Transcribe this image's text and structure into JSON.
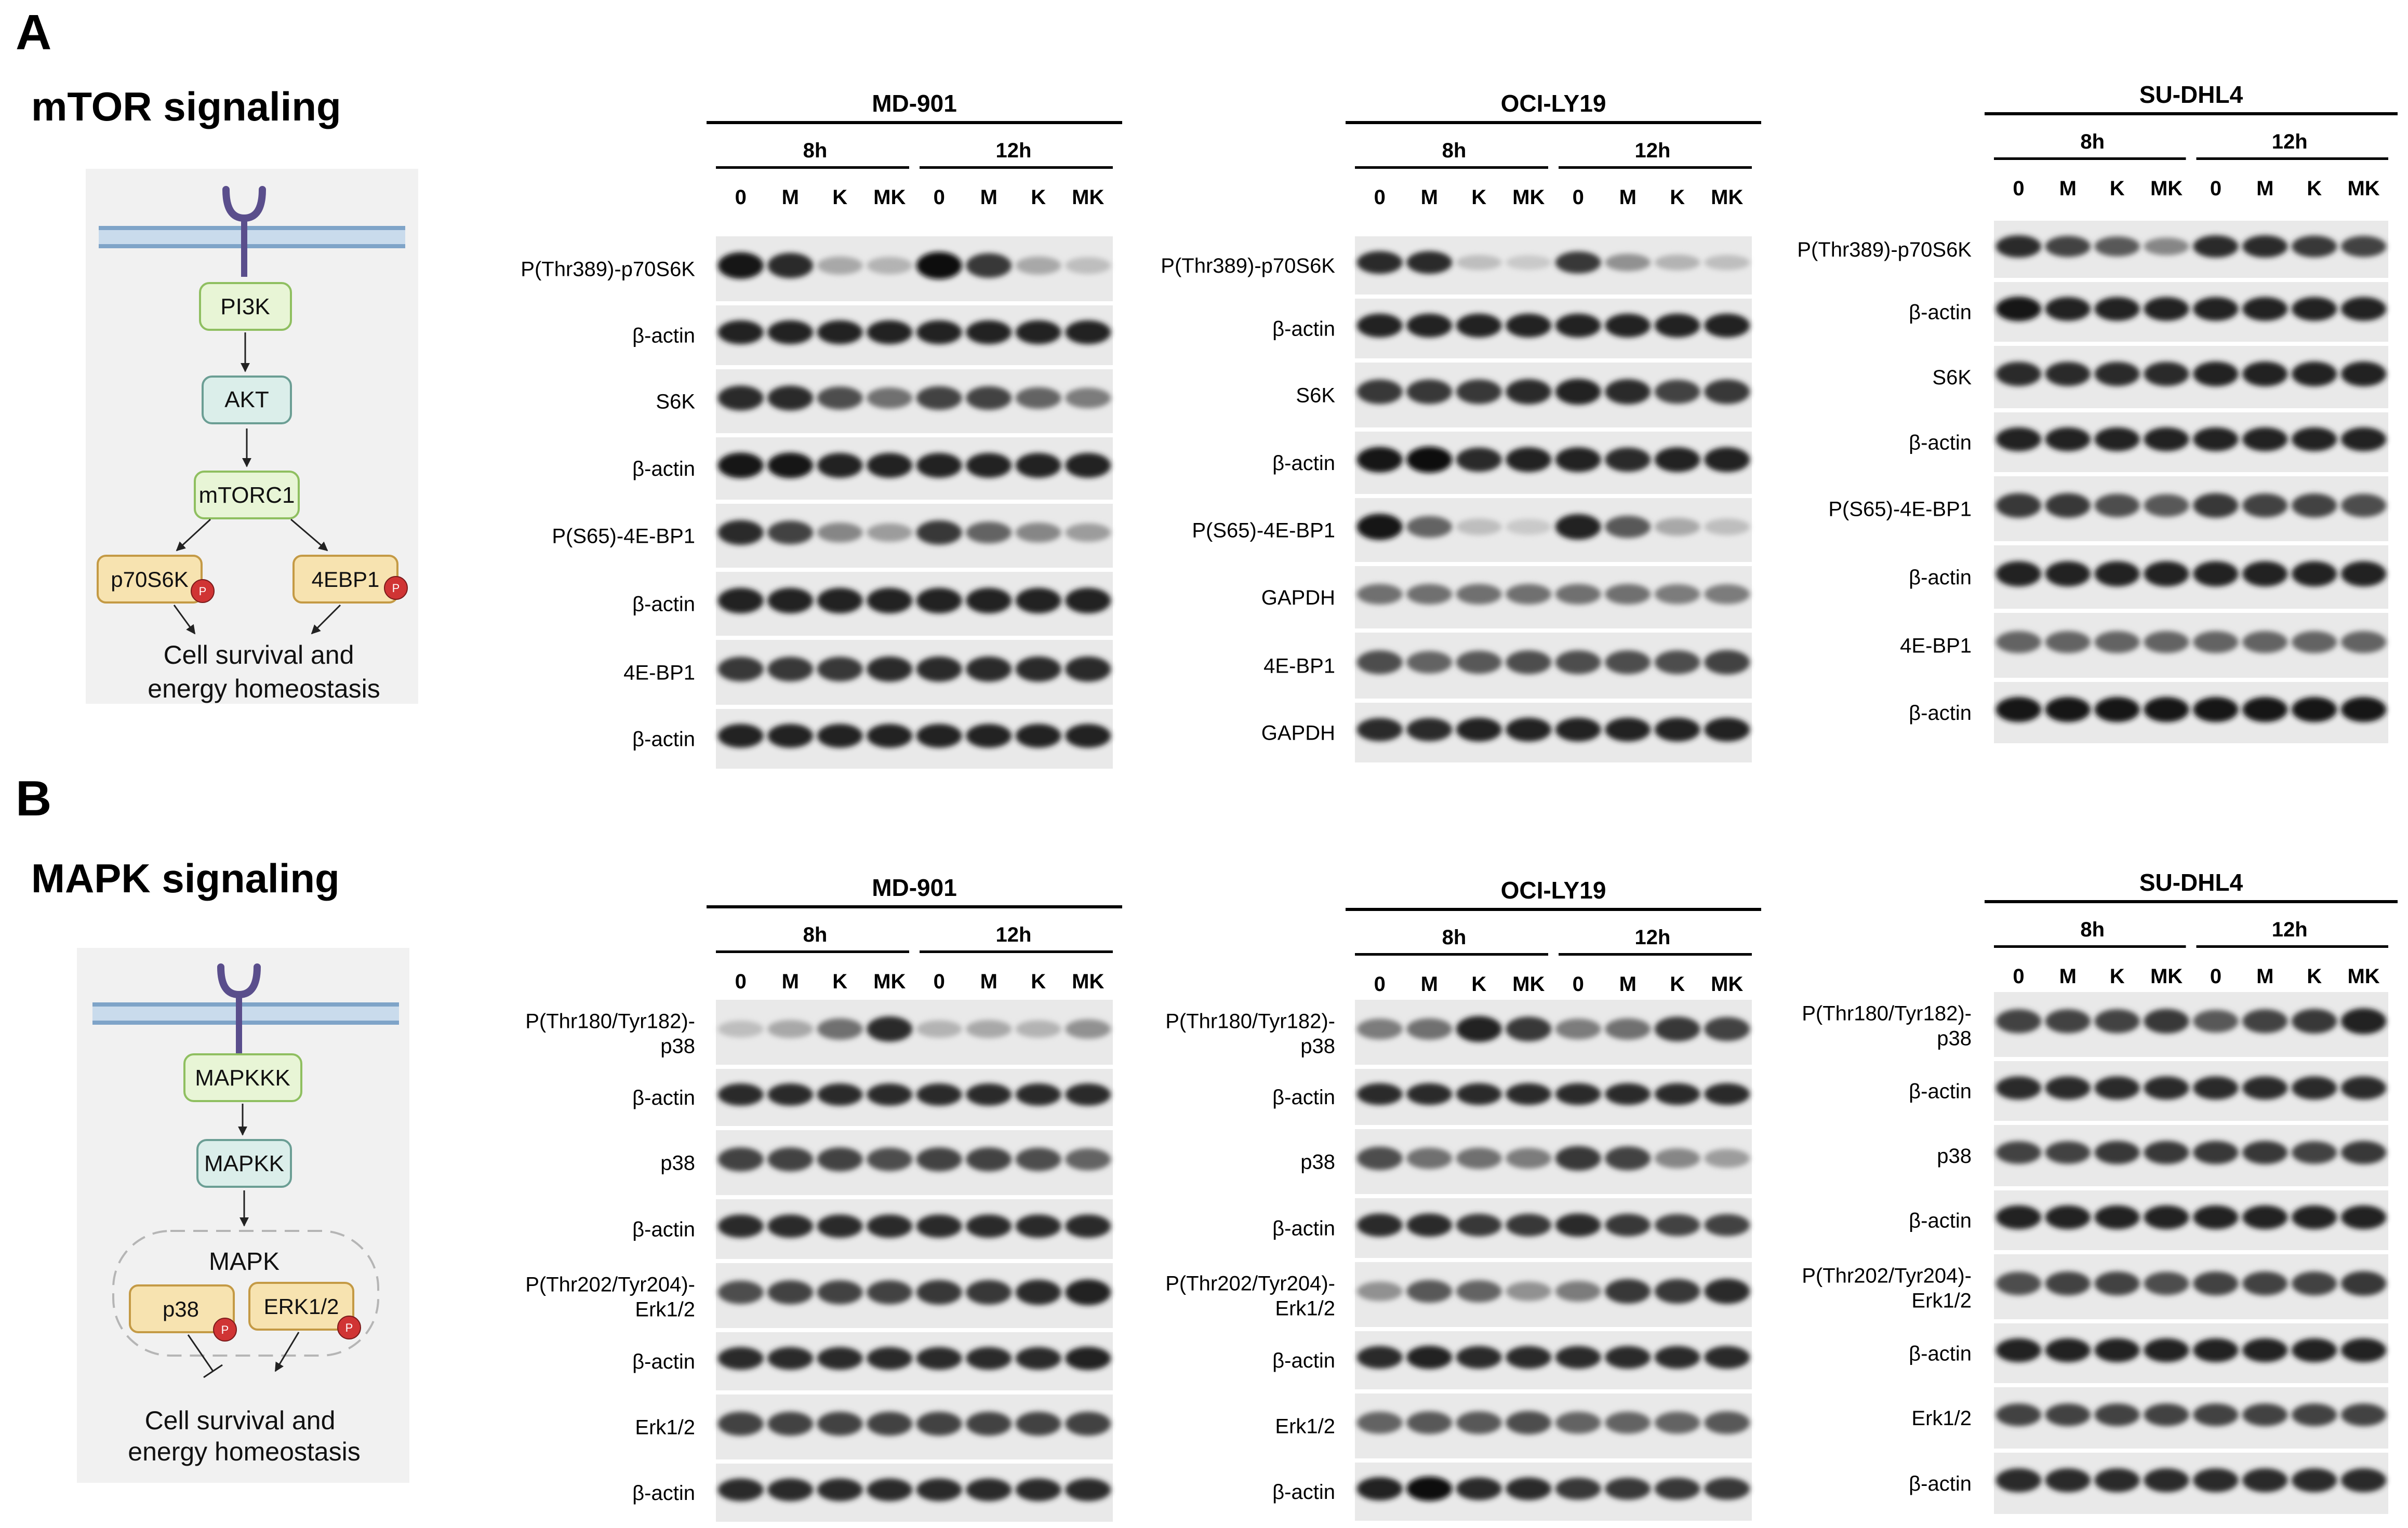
{
  "panel_a": {
    "letter": "A",
    "title": "mTOR signaling",
    "pathway": {
      "node1": "PI3K",
      "node2": "AKT",
      "node3": "mTORC1",
      "target1": "p70S6K",
      "target2": "4EBP1",
      "phospho": "P",
      "outcome_line1": "Cell survival and",
      "outcome_line2": "energy homeostasis"
    },
    "blots": [
      {
        "cell_line": "MD-901",
        "times": [
          "8h",
          "12h"
        ],
        "lanes": [
          "0",
          "M",
          "K",
          "MK",
          "0",
          "M",
          "K",
          "MK"
        ],
        "rows": [
          "P(Thr389)-p70S6K",
          "β-actin",
          "S6K",
          "β-actin",
          "P(S65)-4E-BP1",
          "β-actin",
          "4E-BP1",
          "β-actin"
        ],
        "band_intensity": [
          [
            0.95,
            0.85,
            0.3,
            0.25,
            1.0,
            0.8,
            0.3,
            0.2
          ],
          [
            0.9,
            0.9,
            0.9,
            0.9,
            0.9,
            0.9,
            0.9,
            0.9
          ],
          [
            0.85,
            0.85,
            0.7,
            0.55,
            0.75,
            0.75,
            0.6,
            0.5
          ],
          [
            0.95,
            0.95,
            0.9,
            0.9,
            0.9,
            0.9,
            0.9,
            0.9
          ],
          [
            0.85,
            0.75,
            0.45,
            0.35,
            0.8,
            0.6,
            0.45,
            0.35
          ],
          [
            0.9,
            0.9,
            0.9,
            0.9,
            0.9,
            0.9,
            0.9,
            0.9
          ],
          [
            0.8,
            0.8,
            0.8,
            0.85,
            0.85,
            0.85,
            0.85,
            0.85
          ],
          [
            0.9,
            0.9,
            0.9,
            0.9,
            0.9,
            0.9,
            0.9,
            0.9
          ]
        ]
      },
      {
        "cell_line": "OCI-LY19",
        "times": [
          "8h",
          "12h"
        ],
        "lanes": [
          "0",
          "M",
          "K",
          "MK",
          "0",
          "M",
          "K",
          "MK"
        ],
        "rows": [
          "P(Thr389)-p70S6K",
          "β-actin",
          "S6K",
          "β-actin",
          "P(S65)-4E-BP1",
          "GAPDH",
          "4E-BP1",
          "GAPDH"
        ],
        "band_intensity": [
          [
            0.85,
            0.85,
            0.2,
            0.15,
            0.8,
            0.4,
            0.25,
            0.2
          ],
          [
            0.9,
            0.9,
            0.9,
            0.9,
            0.9,
            0.9,
            0.9,
            0.9
          ],
          [
            0.8,
            0.8,
            0.8,
            0.85,
            0.9,
            0.85,
            0.75,
            0.8
          ],
          [
            0.95,
            1.0,
            0.85,
            0.9,
            0.9,
            0.85,
            0.9,
            0.9
          ],
          [
            0.95,
            0.6,
            0.2,
            0.15,
            0.9,
            0.65,
            0.3,
            0.2
          ],
          [
            0.55,
            0.55,
            0.55,
            0.55,
            0.55,
            0.55,
            0.5,
            0.5
          ],
          [
            0.7,
            0.6,
            0.65,
            0.7,
            0.7,
            0.7,
            0.7,
            0.75
          ],
          [
            0.85,
            0.85,
            0.9,
            0.9,
            0.9,
            0.9,
            0.9,
            0.9
          ]
        ]
      },
      {
        "cell_line": "SU-DHL4",
        "times": [
          "8h",
          "12h"
        ],
        "lanes": [
          "0",
          "M",
          "K",
          "MK",
          "0",
          "M",
          "K",
          "MK"
        ],
        "rows": [
          "P(Thr389)-p70S6K",
          "β-actin",
          "S6K",
          "β-actin",
          "P(S65)-4E-BP1",
          "β-actin",
          "4E-BP1",
          "β-actin"
        ],
        "band_intensity": [
          [
            0.85,
            0.75,
            0.65,
            0.45,
            0.85,
            0.85,
            0.8,
            0.75
          ],
          [
            0.95,
            0.9,
            0.9,
            0.9,
            0.9,
            0.9,
            0.9,
            0.9
          ],
          [
            0.85,
            0.85,
            0.85,
            0.85,
            0.9,
            0.9,
            0.9,
            0.9
          ],
          [
            0.9,
            0.9,
            0.9,
            0.9,
            0.9,
            0.9,
            0.9,
            0.9
          ],
          [
            0.8,
            0.8,
            0.7,
            0.65,
            0.8,
            0.75,
            0.75,
            0.7
          ],
          [
            0.9,
            0.9,
            0.9,
            0.9,
            0.9,
            0.9,
            0.9,
            0.9
          ],
          [
            0.6,
            0.6,
            0.6,
            0.6,
            0.6,
            0.6,
            0.6,
            0.6
          ],
          [
            0.95,
            0.95,
            0.95,
            0.95,
            0.95,
            0.95,
            0.95,
            0.95
          ]
        ]
      }
    ]
  },
  "panel_b": {
    "letter": "B",
    "title": "MAPK signaling",
    "pathway": {
      "node1": "MAPKKK",
      "node2": "MAPKK",
      "group": "MAPK",
      "target1": "p38",
      "target2": "ERK1/2",
      "phospho": "P",
      "outcome_line1": "Cell survival and",
      "outcome_line2": "energy homeostasis"
    },
    "blots": [
      {
        "cell_line": "MD-901",
        "times": [
          "8h",
          "12h"
        ],
        "lanes": [
          "0",
          "M",
          "K",
          "MK",
          "0",
          "M",
          "K",
          "MK"
        ],
        "rows": [
          "P(Thr180/Tyr182)-\np38",
          "β-actin",
          "p38",
          "β-actin",
          "P(Thr202/Tyr204)-\nErk1/2",
          "β-actin",
          "Erk1/2",
          "β-actin"
        ],
        "band_intensity": [
          [
            0.2,
            0.3,
            0.55,
            0.85,
            0.25,
            0.3,
            0.25,
            0.4
          ],
          [
            0.85,
            0.85,
            0.85,
            0.85,
            0.85,
            0.85,
            0.85,
            0.85
          ],
          [
            0.75,
            0.75,
            0.75,
            0.7,
            0.75,
            0.75,
            0.7,
            0.6
          ],
          [
            0.85,
            0.85,
            0.85,
            0.85,
            0.85,
            0.85,
            0.85,
            0.85
          ],
          [
            0.7,
            0.75,
            0.75,
            0.75,
            0.8,
            0.8,
            0.85,
            0.9
          ],
          [
            0.85,
            0.85,
            0.85,
            0.85,
            0.85,
            0.85,
            0.85,
            0.9
          ],
          [
            0.75,
            0.75,
            0.75,
            0.75,
            0.75,
            0.75,
            0.75,
            0.75
          ],
          [
            0.85,
            0.85,
            0.85,
            0.85,
            0.85,
            0.85,
            0.85,
            0.85
          ]
        ]
      },
      {
        "cell_line": "OCI-LY19",
        "times": [
          "8h",
          "12h"
        ],
        "lanes": [
          "0",
          "M",
          "K",
          "MK",
          "0",
          "M",
          "K",
          "MK"
        ],
        "rows": [
          "P(Thr180/Tyr182)-\np38",
          "β-actin",
          "p38",
          "β-actin",
          "P(Thr202/Tyr204)-\nErk1/2",
          "β-actin",
          "Erk1/2",
          "β-actin"
        ],
        "band_intensity": [
          [
            0.5,
            0.55,
            0.9,
            0.8,
            0.5,
            0.55,
            0.8,
            0.75
          ],
          [
            0.85,
            0.85,
            0.85,
            0.85,
            0.85,
            0.85,
            0.85,
            0.85
          ],
          [
            0.7,
            0.55,
            0.55,
            0.5,
            0.8,
            0.75,
            0.45,
            0.35
          ],
          [
            0.85,
            0.85,
            0.8,
            0.8,
            0.85,
            0.8,
            0.75,
            0.75
          ],
          [
            0.4,
            0.65,
            0.6,
            0.4,
            0.5,
            0.8,
            0.8,
            0.85
          ],
          [
            0.85,
            0.9,
            0.85,
            0.85,
            0.85,
            0.85,
            0.85,
            0.85
          ],
          [
            0.6,
            0.65,
            0.65,
            0.7,
            0.6,
            0.6,
            0.6,
            0.65
          ],
          [
            0.9,
            1.0,
            0.85,
            0.85,
            0.8,
            0.8,
            0.8,
            0.8
          ]
        ]
      },
      {
        "cell_line": "SU-DHL4",
        "times": [
          "8h",
          "12h"
        ],
        "lanes": [
          "0",
          "M",
          "K",
          "MK",
          "0",
          "M",
          "K",
          "MK"
        ],
        "rows": [
          "P(Thr180/Tyr182)-\np38",
          "β-actin",
          "p38",
          "β-actin",
          "P(Thr202/Tyr204)-\nErk1/2",
          "β-actin",
          "Erk1/2",
          "β-actin"
        ],
        "band_intensity": [
          [
            0.75,
            0.75,
            0.75,
            0.8,
            0.65,
            0.75,
            0.8,
            0.9
          ],
          [
            0.85,
            0.85,
            0.85,
            0.85,
            0.85,
            0.85,
            0.85,
            0.85
          ],
          [
            0.75,
            0.75,
            0.8,
            0.8,
            0.8,
            0.8,
            0.75,
            0.8
          ],
          [
            0.9,
            0.9,
            0.9,
            0.9,
            0.9,
            0.9,
            0.9,
            0.9
          ],
          [
            0.7,
            0.75,
            0.75,
            0.7,
            0.75,
            0.75,
            0.75,
            0.8
          ],
          [
            0.9,
            0.9,
            0.9,
            0.9,
            0.9,
            0.9,
            0.9,
            0.9
          ],
          [
            0.75,
            0.75,
            0.75,
            0.75,
            0.75,
            0.75,
            0.75,
            0.75
          ],
          [
            0.85,
            0.85,
            0.85,
            0.85,
            0.85,
            0.85,
            0.85,
            0.85
          ]
        ]
      }
    ]
  },
  "colors": {
    "pi3k_fill": "#e8f5d6",
    "pi3k_stroke": "#8fbf60",
    "akt_fill": "#dbeeea",
    "akt_stroke": "#6b9e94",
    "target_fill": "#f7e3b0",
    "target_stroke": "#c49a45",
    "phospho": "#d03434",
    "receptor": "#5a4e8c",
    "membrane": "#7fa4c8",
    "pathway_bg": "#f1f1f1"
  }
}
